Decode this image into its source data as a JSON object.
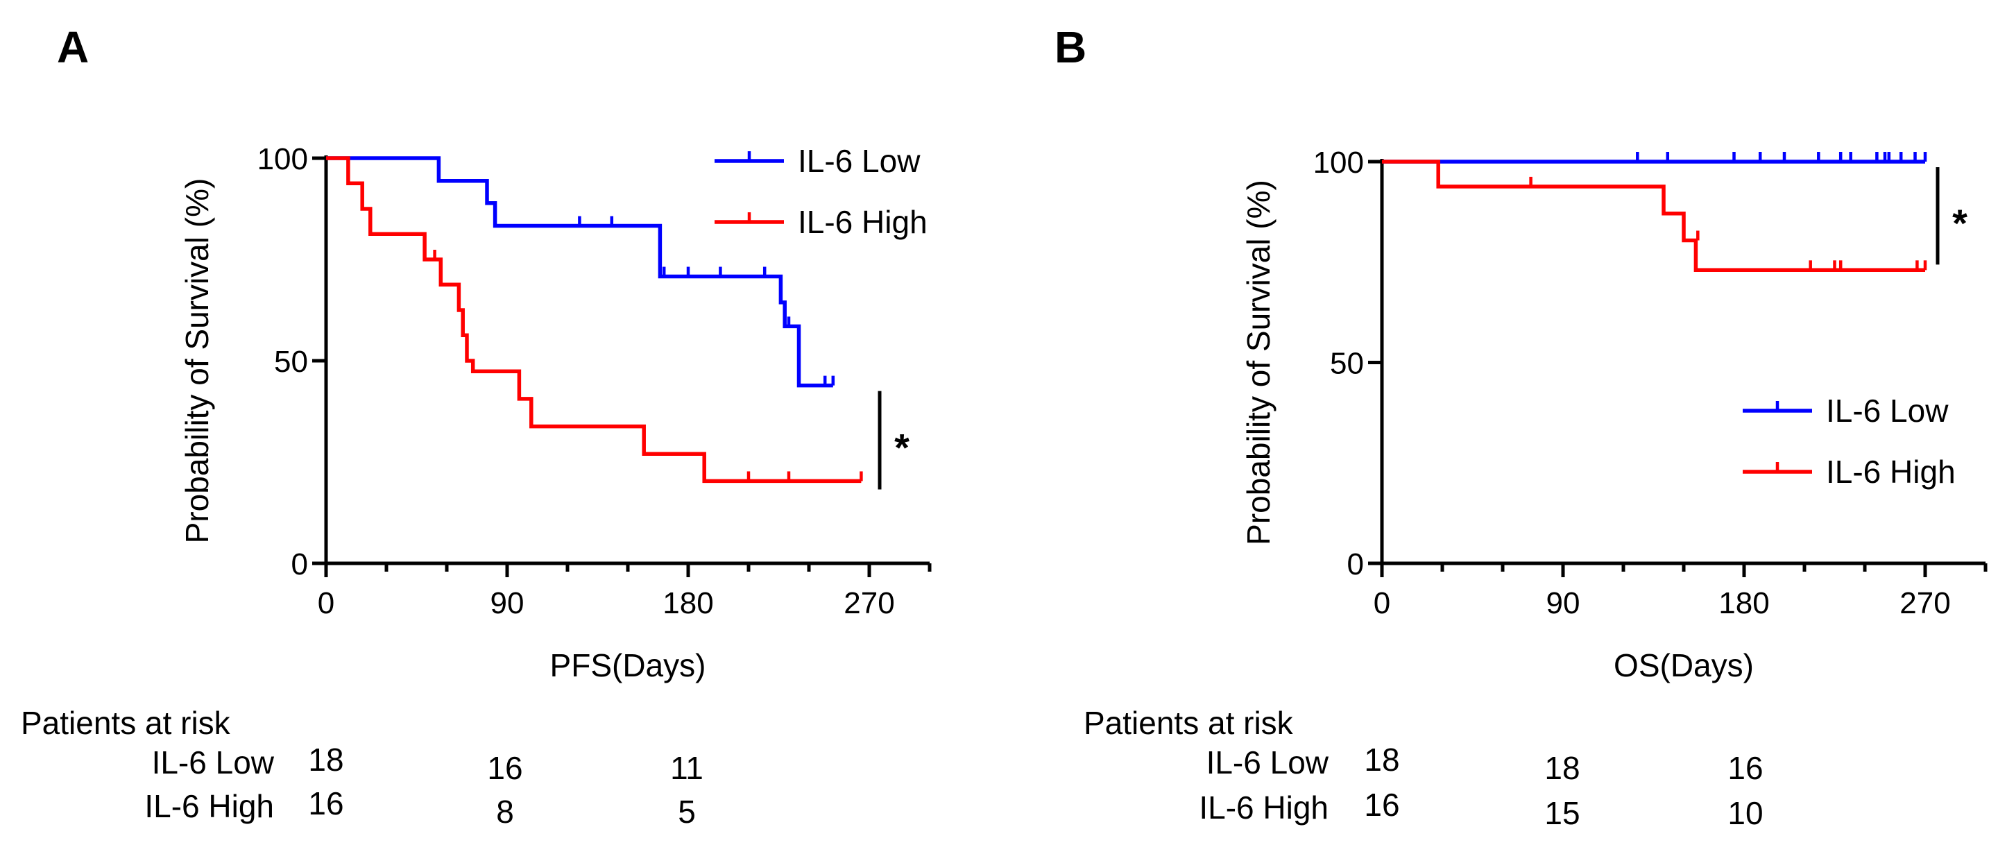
{
  "colors": {
    "low": "#0000ff",
    "high": "#ff0000",
    "axis": "#000000"
  },
  "chart_data": [
    {
      "type": "line",
      "panel_label": "A",
      "xlabel": "PFS(Days)",
      "ylabel": "Probability of Survival (%)",
      "xlim": [
        0,
        300
      ],
      "ylim": [
        0,
        100
      ],
      "xticks": [
        0,
        90,
        180,
        270
      ],
      "yticks": [
        0,
        50,
        100
      ],
      "significance": "*",
      "legend": {
        "placement": "top-right",
        "entries": [
          "IL-6 Low",
          "IL-6 High"
        ]
      },
      "series": [
        {
          "name": "IL-6 Low",
          "steps": [
            [
              0,
              100
            ],
            [
              56,
              100
            ],
            [
              56,
              94.4
            ],
            [
              80,
              94.4
            ],
            [
              80,
              88.9
            ],
            [
              84,
              88.9
            ],
            [
              84,
              83.3
            ],
            [
              166,
              83.3
            ],
            [
              166,
              70.8
            ],
            [
              226,
              70.8
            ],
            [
              226,
              64.4
            ],
            [
              228,
              64.4
            ],
            [
              228,
              58.5
            ],
            [
              235,
              58.5
            ],
            [
              235,
              43.9
            ],
            [
              252,
              43.9
            ]
          ],
          "censors": [
            [
              126,
              83.3
            ],
            [
              142,
              83.3
            ],
            [
              168,
              70.8
            ],
            [
              180,
              70.8
            ],
            [
              196,
              70.8
            ],
            [
              218,
              70.8
            ],
            [
              230,
              58.5
            ],
            [
              248,
              43.9
            ],
            [
              252,
              43.9
            ]
          ]
        },
        {
          "name": "IL-6 High",
          "steps": [
            [
              0,
              100
            ],
            [
              11,
              100
            ],
            [
              11,
              93.8
            ],
            [
              18,
              93.8
            ],
            [
              18,
              87.5
            ],
            [
              22,
              87.5
            ],
            [
              22,
              81.3
            ],
            [
              49,
              81.3
            ],
            [
              49,
              75
            ],
            [
              57,
              75
            ],
            [
              57,
              68.8
            ],
            [
              66,
              68.8
            ],
            [
              66,
              62.5
            ],
            [
              68,
              62.5
            ],
            [
              68,
              56.3
            ],
            [
              70,
              56.3
            ],
            [
              70,
              50
            ],
            [
              73,
              50
            ],
            [
              73,
              47.4
            ],
            [
              96,
              47.4
            ],
            [
              96,
              40.6
            ],
            [
              102,
              40.6
            ],
            [
              102,
              33.8
            ],
            [
              158,
              33.8
            ],
            [
              158,
              27
            ],
            [
              188,
              27
            ],
            [
              188,
              20.3
            ],
            [
              266,
              20.3
            ]
          ],
          "censors": [
            [
              54,
              75
            ],
            [
              210,
              20.3
            ],
            [
              230,
              20.3
            ],
            [
              266,
              20.3
            ]
          ]
        }
      ],
      "risk_table": {
        "title": "Patients at risk",
        "at_days": [
          0,
          90,
          180
        ],
        "rows": [
          {
            "label": "IL-6 Low",
            "values": [
              "18",
              "16",
              "11"
            ]
          },
          {
            "label": "IL-6 High",
            "values": [
              "16",
              "8",
              "5"
            ]
          }
        ]
      }
    },
    {
      "type": "line",
      "panel_label": "B",
      "xlabel": "OS(Days)",
      "ylabel": "Probability of Survival (%)",
      "xlim": [
        0,
        300
      ],
      "ylim": [
        0,
        100
      ],
      "xticks": [
        0,
        90,
        180,
        270
      ],
      "yticks": [
        0,
        50,
        100
      ],
      "significance": "*",
      "legend": {
        "placement": "center-right",
        "entries": [
          "IL-6 Low",
          "IL-6 High"
        ]
      },
      "series": [
        {
          "name": "IL-6 Low",
          "steps": [
            [
              0,
              100
            ],
            [
              270,
              100
            ]
          ],
          "censors": [
            [
              127,
              100
            ],
            [
              142,
              100
            ],
            [
              175,
              100
            ],
            [
              188,
              100
            ],
            [
              200,
              100
            ],
            [
              217,
              100
            ],
            [
              228,
              100
            ],
            [
              233,
              100
            ],
            [
              246,
              100
            ],
            [
              250,
              100
            ],
            [
              252,
              100
            ],
            [
              258,
              100
            ],
            [
              265,
              100
            ],
            [
              270,
              100
            ]
          ]
        },
        {
          "name": "IL-6 High",
          "steps": [
            [
              0,
              100
            ],
            [
              28,
              100
            ],
            [
              28,
              93.8
            ],
            [
              140,
              93.8
            ],
            [
              140,
              87.1
            ],
            [
              150,
              87.1
            ],
            [
              150,
              80.4
            ],
            [
              156,
              80.4
            ],
            [
              156,
              73
            ],
            [
              270,
              73
            ]
          ],
          "censors": [
            [
              74,
              93.8
            ],
            [
              157,
              80.4
            ],
            [
              213,
              73
            ],
            [
              225,
              73
            ],
            [
              228,
              73
            ],
            [
              266,
              73
            ],
            [
              270,
              73
            ]
          ]
        }
      ],
      "risk_table": {
        "title": "Patients at risk",
        "at_days": [
          0,
          90,
          180
        ],
        "rows": [
          {
            "label": "IL-6 Low",
            "values": [
              "18",
              "18",
              "16"
            ]
          },
          {
            "label": "IL-6 High",
            "values": [
              "16",
              "15",
              "10"
            ]
          }
        ]
      }
    }
  ]
}
